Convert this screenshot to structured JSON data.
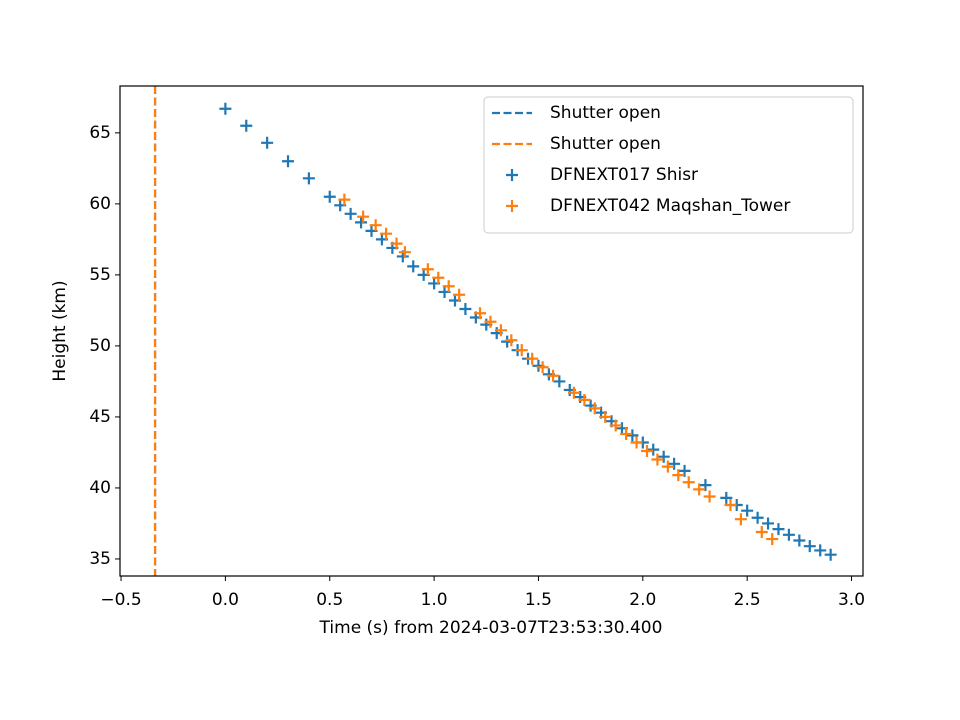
{
  "chart_data": {
    "type": "scatter",
    "xlabel": "Time (s) from 2024-03-07T23:53:30.400",
    "ylabel": "Height (km)",
    "xlim": [
      -0.505,
      3.055
    ],
    "ylim": [
      33.8,
      68.3
    ],
    "xticks": [
      {
        "value": -0.5,
        "label": "−0.5"
      },
      {
        "value": 0,
        "label": "0.0"
      },
      0.5,
      {
        "value": 1,
        "label": "1.0"
      },
      1.5,
      {
        "value": 2,
        "label": "2.0"
      },
      2.5,
      {
        "value": 3,
        "label": "3.0"
      }
    ],
    "yticks": [
      35,
      40,
      45,
      50,
      55,
      60,
      65
    ],
    "legend": "upper right",
    "vlines": [
      {
        "name": "Shutter open",
        "color": "#1f77b4",
        "x": -0.337
      },
      {
        "name": "Shutter open",
        "color": "#ff7f0e",
        "x": -0.337
      }
    ],
    "series": [
      {
        "name": "DFNEXT017 Shisr",
        "color": "#1f77b4",
        "x": [
          0.0,
          0.1,
          0.2,
          0.3,
          0.4,
          0.5,
          0.55,
          0.6,
          0.65,
          0.7,
          0.75,
          0.8,
          0.85,
          0.9,
          0.95,
          1.0,
          1.05,
          1.1,
          1.15,
          1.2,
          1.25,
          1.3,
          1.35,
          1.4,
          1.45,
          1.5,
          1.55,
          1.6,
          1.65,
          1.7,
          1.75,
          1.8,
          1.85,
          1.9,
          1.95,
          2.0,
          2.05,
          2.1,
          2.15,
          2.2,
          2.3,
          2.4,
          2.45,
          2.5,
          2.55,
          2.6,
          2.65,
          2.7,
          2.75,
          2.8,
          2.85,
          2.9
        ],
        "values": [
          66.7,
          65.5,
          64.3,
          63.0,
          61.8,
          60.5,
          59.9,
          59.3,
          58.7,
          58.1,
          57.5,
          56.9,
          56.3,
          55.6,
          55.0,
          54.4,
          53.8,
          53.2,
          52.6,
          52.0,
          51.5,
          50.9,
          50.3,
          49.7,
          49.1,
          48.6,
          48.0,
          47.5,
          46.9,
          46.4,
          45.8,
          45.3,
          44.7,
          44.2,
          43.7,
          43.2,
          42.7,
          42.2,
          41.7,
          41.2,
          40.2,
          39.3,
          38.8,
          38.4,
          37.9,
          37.5,
          37.1,
          36.7,
          36.3,
          35.9,
          35.6,
          35.3
        ]
      },
      {
        "name": "DFNEXT042 Maqshan_Tower",
        "color": "#ff7f0e",
        "x": [
          0.57,
          0.66,
          0.72,
          0.77,
          0.82,
          0.86,
          0.97,
          1.02,
          1.07,
          1.12,
          1.22,
          1.27,
          1.32,
          1.37,
          1.42,
          1.47,
          1.52,
          1.57,
          1.67,
          1.72,
          1.77,
          1.82,
          1.87,
          1.92,
          1.97,
          2.02,
          2.07,
          2.12,
          2.17,
          2.22,
          2.27,
          2.32,
          2.42,
          2.47,
          2.57,
          2.62
        ],
        "values": [
          60.3,
          59.1,
          58.5,
          57.9,
          57.2,
          56.6,
          55.4,
          54.8,
          54.2,
          53.6,
          52.3,
          51.7,
          51.1,
          50.4,
          49.7,
          49.1,
          48.5,
          47.9,
          46.7,
          46.2,
          45.6,
          45.0,
          44.4,
          43.8,
          43.2,
          42.6,
          42.0,
          41.5,
          40.9,
          40.4,
          39.9,
          39.4,
          38.8,
          37.8,
          36.9,
          36.4
        ]
      }
    ]
  }
}
